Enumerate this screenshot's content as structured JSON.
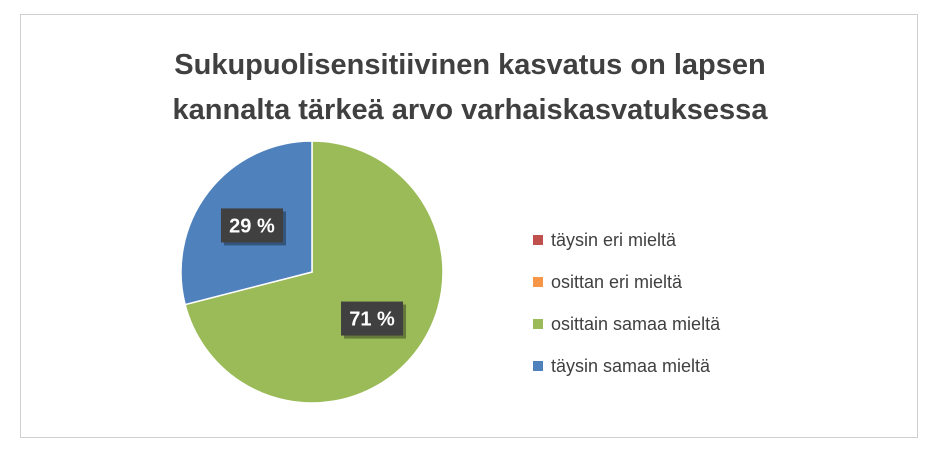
{
  "chart_data": {
    "type": "pie",
    "title_lines": [
      "Sukupuolisensitiivinen kasvatus on lapsen",
      "kannalta tärkeä arvo varhaiskasvatuksessa"
    ],
    "categories": [
      "täysin eri mieltä",
      "osittan eri mieltä",
      "osittain samaa mieltä",
      "täysin samaa mieltä"
    ],
    "values": [
      0,
      0,
      71,
      29
    ],
    "data_labels": [
      "",
      "",
      "71 %",
      "29 %"
    ],
    "colors": [
      "#c0504d",
      "#f79646",
      "#9bbb59",
      "#4f81bd"
    ],
    "legend_position": "right"
  }
}
